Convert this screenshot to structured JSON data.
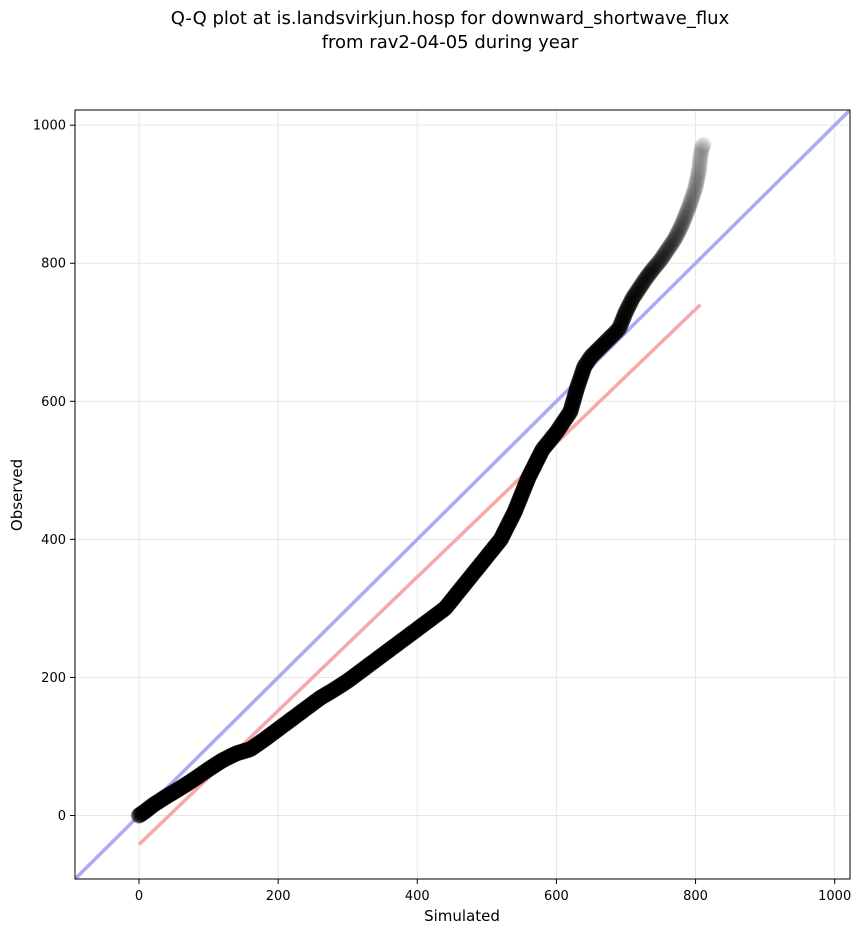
{
  "chart_data": {
    "type": "scatter",
    "title": "Q-Q plot at is.landsvirkjun.hosp for downward_shortwave_flux",
    "subtitle": "from rav2-04-05 during year",
    "xlabel": "Simulated",
    "ylabel": "Observed",
    "xlim": [
      -92,
      1022
    ],
    "ylim": [
      -92,
      1022
    ],
    "x_ticks": [
      0,
      200,
      400,
      600,
      800,
      1000
    ],
    "y_ticks": [
      0,
      200,
      400,
      600,
      800,
      1000
    ],
    "grid": true,
    "reference_line": {
      "color": "#aaaaf5",
      "from": [
        -92,
        -92
      ],
      "to": [
        1022,
        1022
      ]
    },
    "fit_line": {
      "color": "#f7a9a9",
      "from": [
        0,
        -42
      ],
      "to": [
        807,
        740
      ]
    },
    "quantile_points": {
      "color": "#000000",
      "x": [
        0,
        10,
        20,
        40,
        60,
        80,
        100,
        120,
        140,
        160,
        180,
        200,
        220,
        240,
        260,
        280,
        300,
        320,
        340,
        360,
        380,
        400,
        420,
        440,
        460,
        480,
        500,
        520,
        540,
        560,
        580,
        600,
        620,
        630,
        640,
        650,
        660,
        670,
        680,
        690,
        700,
        710,
        720,
        730,
        740,
        750,
        760,
        770,
        780,
        790,
        800,
        805,
        807,
        809,
        810,
        812
      ],
      "y": [
        0,
        7,
        15,
        28,
        40,
        53,
        67,
        80,
        90,
        96,
        110,
        125,
        140,
        155,
        170,
        182,
        195,
        210,
        225,
        240,
        255,
        270,
        285,
        300,
        325,
        350,
        375,
        400,
        440,
        490,
        530,
        555,
        585,
        620,
        650,
        665,
        675,
        685,
        695,
        705,
        730,
        750,
        765,
        780,
        793,
        805,
        820,
        835,
        855,
        880,
        910,
        935,
        955,
        965,
        970,
        972
      ]
    }
  }
}
